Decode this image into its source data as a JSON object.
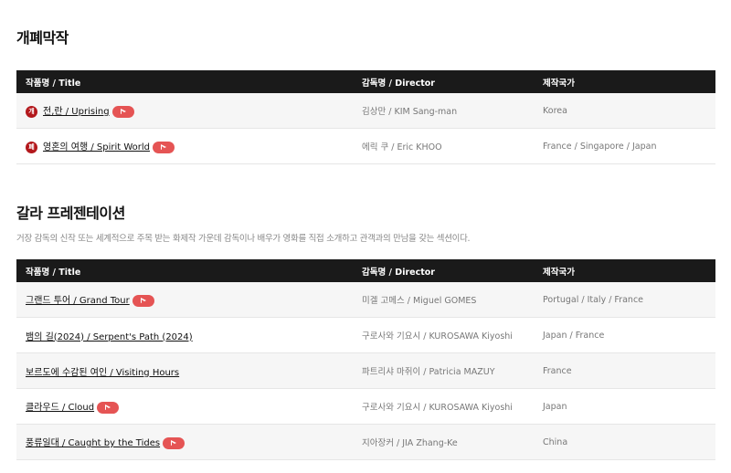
{
  "section1": {
    "title": "개폐막작",
    "headers": [
      "작품명 / Title",
      "감독명 / Director",
      "제작국가"
    ],
    "rows": [
      {
        "badge": "개",
        "title": "전,란 / Uprising",
        "director": "김상만 / KIM Sang-man",
        "country": "Korea",
        "video": true
      },
      {
        "badge": "폐",
        "title": "영혼의 여행 / Spirit World",
        "director": "에릭 쿠 / Eric KHOO",
        "country": "France / Singapore / Japan",
        "video": true
      }
    ]
  },
  "section2": {
    "title": "갈라 프레젠테이션",
    "description": "거장 감독의 신작 또는 세계적으로 주목 받는 화제작 가운데 감독이나 배우가 영화를 직접 소개하고 관객과의 만남을 갖는 섹션이다.",
    "headers": [
      "작품명 / Title",
      "감독명 / Director",
      "제작국가"
    ],
    "rows": [
      {
        "title": "그랜드 투어 / Grand Tour",
        "director": "미겔 고메스 / Miguel GOMES",
        "country": "Portugal / Italy / France",
        "video": true
      },
      {
        "title": "뱀의 길(2024) / Serpent's Path (2024)",
        "director": "구로사와 기요시 / KUROSAWA Kiyoshi",
        "country": "Japan / France",
        "video": false
      },
      {
        "title": "보르도에 수감된 여인 / Visiting Hours",
        "director": "파트리샤 마쥐이 / Patricia MAZUY",
        "country": "France",
        "video": false
      },
      {
        "title": "클라우드 / Cloud",
        "director": "구로사와 기요시 / KUROSAWA Kiyoshi",
        "country": "Japan",
        "video": true
      },
      {
        "title": "풍류일대 / Caught by the Tides",
        "director": "지아장커 / JIA Zhang-Ke",
        "country": "China",
        "video": true
      }
    ]
  }
}
